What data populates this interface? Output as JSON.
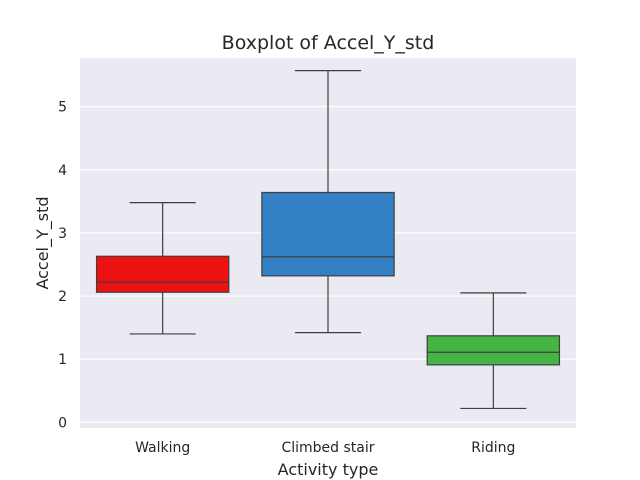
{
  "chart_data": {
    "type": "boxplot",
    "title": "Boxplot of Accel_Y_std",
    "xlabel": "Activity type",
    "ylabel": "Accel_Y_std",
    "ylim": [
      -0.09,
      5.77
    ],
    "yticks": [
      0,
      1,
      2,
      3,
      4,
      5
    ],
    "grid": true,
    "categories": [
      "Walking",
      "Climbed stair",
      "Riding"
    ],
    "boxes": [
      {
        "category": "Walking",
        "whisker_low": 1.4,
        "q1": 2.06,
        "median": 2.22,
        "q3": 2.63,
        "whisker_high": 3.48,
        "color": "#ee1111"
      },
      {
        "category": "Climbed stair",
        "whisker_low": 1.42,
        "q1": 2.32,
        "median": 2.62,
        "q3": 3.64,
        "whisker_high": 5.57,
        "color": "#3380c4"
      },
      {
        "category": "Riding",
        "whisker_low": 0.22,
        "q1": 0.91,
        "median": 1.11,
        "q3": 1.37,
        "whisker_high": 2.05,
        "color": "#44b444"
      }
    ]
  },
  "colors": {
    "plot_background": "#eaeaf2",
    "grid": "#ffffff",
    "box_edge": "#3f3f3f"
  }
}
